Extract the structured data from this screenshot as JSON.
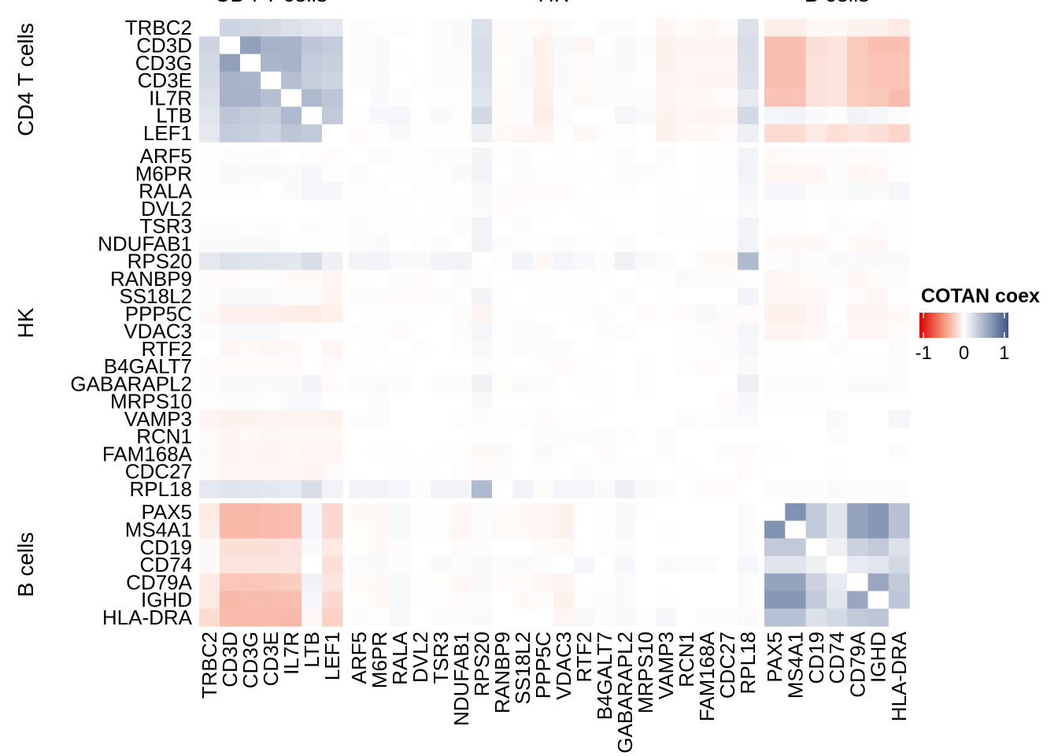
{
  "chart_data": {
    "type": "heatmap",
    "title": "",
    "legend": {
      "title": "COTAN coex",
      "ticks": [
        -1,
        0,
        1
      ],
      "range": [
        -1.1,
        1.1
      ],
      "placement": "right",
      "colors": {
        "neg": "#DD0000",
        "mid_neg": "#F58A6E",
        "zero": "#FFFFFF",
        "pos": "#3F5788"
      }
    },
    "groups": [
      {
        "name": "CD4 T cells",
        "genes": [
          "TRBC2",
          "CD3D",
          "CD3G",
          "CD3E",
          "IL7R",
          "LTB",
          "LEF1"
        ]
      },
      {
        "name": "HK",
        "genes": [
          "ARF5",
          "M6PR",
          "RALA",
          "DVL2",
          "TSR3",
          "NDUFAB1",
          "RPS20",
          "RANBP9",
          "SS18L2",
          "PPP5C",
          "VDAC3",
          "RTF2",
          "B4GALT7",
          "GABARAPL2",
          "MRPS10",
          "VAMP3",
          "RCN1",
          "FAM168A",
          "CDC27",
          "RPL18"
        ]
      },
      {
        "name": "B cells",
        "genes": [
          "PAX5",
          "MS4A1",
          "CD19",
          "CD74",
          "CD79A",
          "IGHD",
          "HLA-DRA"
        ]
      }
    ],
    "matrix": [
      [
        0,
        0.28,
        0.25,
        0.24,
        0.2,
        0.17,
        0.15,
        0.02,
        0.01,
        -0.01,
        0,
        0.02,
        0.03,
        0.2,
        -0.02,
        0.02,
        -0.03,
        0.02,
        0,
        -0.02,
        0.02,
        0,
        -0.04,
        -0.02,
        -0.04,
        -0.02,
        0.2,
        -0.08,
        -0.08,
        -0.03,
        -0.03,
        -0.06,
        -0.06,
        -0.1
      ],
      [
        0.28,
        0,
        0.62,
        0.5,
        0.5,
        0.38,
        0.34,
        0.02,
        0.03,
        0,
        0,
        0.02,
        0.03,
        0.22,
        -0.02,
        0.02,
        -0.06,
        0.04,
        -0.04,
        0,
        0.03,
        0.02,
        -0.06,
        -0.05,
        -0.05,
        -0.05,
        0.22,
        -0.3,
        -0.3,
        -0.15,
        -0.13,
        -0.25,
        -0.3,
        -0.3
      ],
      [
        0.25,
        0.62,
        0,
        0.48,
        0.5,
        0.34,
        0.32,
        0.02,
        0.03,
        0.01,
        0,
        0.02,
        0.02,
        0.22,
        -0.01,
        0.03,
        -0.06,
        0.03,
        -0.02,
        0.02,
        0.03,
        0.01,
        -0.06,
        -0.04,
        -0.04,
        -0.04,
        0.21,
        -0.3,
        -0.3,
        -0.14,
        -0.12,
        -0.25,
        -0.28,
        -0.28
      ],
      [
        0.24,
        0.5,
        0.48,
        0,
        0.42,
        0.32,
        0.28,
        0.02,
        0.03,
        0,
        0.01,
        0.02,
        0.02,
        0.2,
        -0.01,
        0.03,
        -0.06,
        0.03,
        -0.02,
        0.02,
        0.02,
        0.01,
        -0.05,
        -0.04,
        -0.05,
        -0.05,
        0.2,
        -0.3,
        -0.3,
        -0.14,
        -0.12,
        -0.25,
        -0.28,
        -0.28
      ],
      [
        0.2,
        0.5,
        0.5,
        0.42,
        0,
        0.45,
        0.38,
        0,
        0.03,
        0.02,
        0,
        0.01,
        0.01,
        0.17,
        -0.02,
        0.02,
        -0.07,
        0.02,
        -0.03,
        0.02,
        0.02,
        0.02,
        -0.05,
        -0.03,
        -0.03,
        -0.02,
        0.14,
        -0.28,
        -0.28,
        -0.14,
        -0.12,
        -0.24,
        -0.26,
        -0.32
      ],
      [
        0.17,
        0.38,
        0.34,
        0.32,
        0.45,
        0,
        0.35,
        0.01,
        0.05,
        0.06,
        0,
        0.03,
        0.01,
        0.25,
        -0.02,
        0.02,
        -0.08,
        0.02,
        0,
        0,
        0.06,
        0.03,
        -0.06,
        -0.04,
        -0.05,
        -0.04,
        0.25,
        0.06,
        0.07,
        0.03,
        -0.01,
        0.08,
        0.06,
        -0.02
      ],
      [
        0.15,
        0.34,
        0.32,
        0.28,
        0.38,
        0.35,
        0,
        -0.02,
        0.01,
        0.04,
        -0.01,
        -0.01,
        -0.01,
        0.1,
        -0.03,
        -0.04,
        -0.05,
        0.01,
        -0.03,
        -0.01,
        -0.01,
        0,
        -0.06,
        -0.03,
        -0.03,
        -0.02,
        0.1,
        -0.17,
        -0.17,
        -0.1,
        -0.15,
        -0.12,
        -0.15,
        -0.2
      ],
      [
        0.01,
        0.02,
        0.02,
        0.02,
        0,
        0.01,
        -0.02,
        0,
        0.02,
        -0.01,
        -0.01,
        0.02,
        0.02,
        0.07,
        -0.01,
        0.02,
        0,
        0.01,
        0,
        -0.01,
        0.02,
        0,
        0.02,
        0,
        -0.01,
        -0.01,
        0.07,
        -0.03,
        -0.02,
        -0.02,
        0.02,
        -0.02,
        -0.02,
        0.01
      ],
      [
        0.01,
        0.04,
        0.03,
        0.03,
        0.03,
        0.05,
        0.01,
        0.02,
        0,
        0.01,
        -0.01,
        0.01,
        0.03,
        0.07,
        0,
        0.02,
        0.01,
        0.01,
        0.01,
        0,
        0.02,
        0.02,
        0.01,
        0,
        -0.01,
        0.01,
        0.08,
        -0.04,
        -0.04,
        -0.04,
        0.02,
        -0.04,
        -0.03,
        0.01
      ],
      [
        -0.01,
        0.01,
        0.01,
        0,
        0.03,
        0.06,
        0.05,
        -0.01,
        0.01,
        0,
        0.01,
        -0.01,
        0,
        0.04,
        0.02,
        -0.02,
        -0.02,
        -0.02,
        0,
        0.01,
        0.01,
        0,
        0.01,
        0,
        0.01,
        0.01,
        0.05,
        0.05,
        0.05,
        0.02,
        0.02,
        0.04,
        0.03,
        0.05
      ],
      [
        0,
        0,
        0,
        0,
        0,
        0,
        -0.01,
        -0.01,
        -0.01,
        0.01,
        0,
        0.01,
        0.01,
        0.03,
        -0.02,
        -0.01,
        0.01,
        0,
        -0.01,
        0,
        0,
        0,
        0.01,
        0.01,
        0,
        0,
        0.03,
        0.01,
        0.01,
        0,
        -0.01,
        0,
        0,
        0.01
      ],
      [
        0.02,
        0.02,
        0.01,
        0.02,
        0,
        0.02,
        -0.01,
        0.02,
        0.01,
        -0.01,
        0.01,
        0,
        0.02,
        0.07,
        0,
        0.02,
        0,
        0,
        0,
        0.01,
        0,
        0,
        0.01,
        -0.01,
        -0.01,
        -0.01,
        0.07,
        -0.01,
        -0.01,
        0,
        0.02,
        -0.01,
        -0.02,
        0.01
      ],
      [
        0.03,
        0.03,
        0.03,
        0.03,
        0.01,
        0.01,
        -0.01,
        0.02,
        0.03,
        0,
        0.01,
        0.02,
        0,
        0.08,
        0.02,
        0.01,
        -0.01,
        0.02,
        0.01,
        0,
        0.02,
        0,
        0,
        0,
        -0.01,
        -0.01,
        0.08,
        -0.03,
        -0.03,
        -0.03,
        0.01,
        -0.03,
        -0.03,
        0.01
      ],
      [
        0.15,
        0.2,
        0.18,
        0.17,
        0.16,
        0.22,
        0.1,
        0.07,
        0.07,
        0.04,
        0.03,
        0.07,
        0.08,
        0,
        0.01,
        0.07,
        -0.03,
        0.06,
        0.04,
        0.02,
        0.09,
        0.04,
        0.02,
        0,
        -0.03,
        -0.03,
        0.45,
        0.02,
        0.03,
        0.02,
        0.04,
        0.03,
        0.03,
        0.03
      ],
      [
        -0.02,
        -0.02,
        -0.01,
        -0.01,
        -0.03,
        -0.03,
        -0.04,
        -0.01,
        0,
        0.02,
        -0.02,
        0,
        0.02,
        0.01,
        0,
        0.01,
        0.01,
        0.01,
        0.01,
        -0.01,
        0,
        0.01,
        0.01,
        0.03,
        0.02,
        0.02,
        0.01,
        -0.04,
        -0.03,
        -0.02,
        0.02,
        -0.04,
        -0.02,
        0.02
      ],
      [
        0.02,
        0.03,
        0.04,
        0.03,
        0.02,
        0.02,
        -0.05,
        0.02,
        0.02,
        -0.02,
        -0.02,
        0.02,
        0.01,
        0.07,
        0.01,
        0,
        0.01,
        0.01,
        0.01,
        0,
        0.02,
        0,
        -0.01,
        0,
        0,
        0,
        0.07,
        -0.04,
        -0.04,
        -0.03,
        0.01,
        -0.02,
        -0.04,
        0.01
      ],
      [
        -0.03,
        -0.07,
        -0.07,
        -0.07,
        -0.08,
        -0.09,
        -0.07,
        0,
        0.01,
        0.01,
        0.01,
        0,
        -0.02,
        -0.05,
        0.01,
        0.01,
        0,
        0,
        -0.01,
        0.02,
        0,
        -0.02,
        -0.01,
        -0.02,
        0.04,
        0.02,
        -0.02,
        -0.06,
        -0.06,
        -0.04,
        0,
        -0.05,
        -0.05,
        -0.03
      ],
      [
        0.02,
        0.04,
        0.04,
        0.04,
        0.02,
        0.02,
        0.01,
        0.01,
        0.01,
        -0.02,
        0,
        0,
        0.02,
        0.06,
        0.01,
        0.02,
        -0.02,
        0,
        0,
        0.02,
        0.01,
        0,
        0,
        0.01,
        0.02,
        -0.02,
        0.06,
        -0.05,
        -0.05,
        -0.03,
        0.01,
        -0.04,
        -0.04,
        -0.02
      ],
      [
        0,
        -0.04,
        -0.03,
        -0.04,
        -0.03,
        -0.01,
        -0.04,
        0,
        0.01,
        0,
        -0.01,
        0,
        0.01,
        0.04,
        0.01,
        0.02,
        0.02,
        0.02,
        0,
        -0.01,
        0,
        0,
        0,
        0.01,
        0.01,
        0.02,
        0.05,
        -0.01,
        -0.01,
        0,
        0.02,
        0,
        0,
        0.02
      ],
      [
        -0.02,
        -0.02,
        -0.02,
        -0.02,
        -0.02,
        0,
        -0.02,
        -0.01,
        0,
        0.01,
        0,
        0,
        0,
        0.02,
        -0.01,
        0,
        -0.01,
        -0.02,
        -0.01,
        0,
        0,
        0.01,
        0,
        -0.01,
        -0.02,
        -0.01,
        0.03,
        0.01,
        0.01,
        0.01,
        0,
        0.01,
        0.01,
        0.02
      ],
      [
        0.02,
        0.03,
        0.03,
        0.03,
        0.03,
        0.07,
        -0.02,
        0.02,
        0.03,
        0.02,
        0,
        0.02,
        0.02,
        0.09,
        -0.01,
        0.03,
        -0.02,
        0,
        -0.01,
        0.01,
        0,
        0.01,
        0,
        0,
        0,
        0,
        0.1,
        0.03,
        0.03,
        0.02,
        0.01,
        0.03,
        0.03,
        0.02
      ],
      [
        -0.01,
        0.02,
        0.02,
        0.01,
        0.03,
        0.03,
        0,
        0,
        0.02,
        0,
        0,
        0,
        0,
        0.04,
        0,
        0,
        -0.01,
        0,
        0,
        0.01,
        0,
        0,
        0,
        0,
        0,
        -0.02,
        0.05,
        0.01,
        0.01,
        0.01,
        0,
        0,
        0,
        0
      ],
      [
        -0.05,
        -0.06,
        -0.06,
        -0.05,
        -0.05,
        -0.05,
        -0.06,
        0.02,
        0.02,
        0,
        0,
        0,
        0.01,
        0.02,
        0.01,
        0.01,
        -0.02,
        0.01,
        0.01,
        0,
        0,
        0,
        0,
        0.02,
        0.01,
        0.02,
        0.03,
        0,
        0,
        0,
        0.03,
        0,
        0,
        0.06
      ],
      [
        -0.02,
        -0.05,
        -0.03,
        -0.04,
        -0.03,
        -0.03,
        -0.03,
        0,
        0,
        0,
        0,
        0,
        0,
        0.01,
        0.01,
        0,
        0.02,
        0.02,
        0.02,
        0.02,
        0.01,
        0,
        0.02,
        0,
        0,
        0,
        0,
        0,
        0,
        0,
        0.02,
        0,
        0,
        0
      ],
      [
        -0.03,
        -0.05,
        -0.04,
        -0.05,
        -0.03,
        -0.04,
        -0.04,
        0,
        -0.01,
        0.01,
        0,
        -0.01,
        -0.01,
        -0.03,
        0.03,
        0,
        0.03,
        -0.01,
        0,
        -0.02,
        0,
        0,
        0.02,
        0,
        0,
        0.02,
        -0.02,
        -0.01,
        0,
        0,
        0,
        0,
        0,
        0.02
      ],
      [
        -0.02,
        -0.04,
        -0.04,
        -0.04,
        -0.04,
        -0.05,
        -0.02,
        0,
        0,
        0.01,
        0.01,
        0,
        -0.01,
        -0.02,
        0.02,
        0,
        0.01,
        0,
        0.02,
        -0.01,
        -0.01,
        0.01,
        0,
        0.01,
        0,
        0,
        -0.02,
        0,
        0,
        0,
        0.01,
        0,
        0,
        0
      ],
      [
        0.15,
        0.18,
        0.17,
        0.16,
        0.13,
        0.22,
        0.08,
        0.07,
        0.08,
        0.05,
        0.02,
        0.07,
        0.08,
        0.45,
        0,
        0.08,
        -0.02,
        0.06,
        0.05,
        0.03,
        0.1,
        0.04,
        0.02,
        0,
        -0.02,
        -0.02,
        0,
        0.02,
        0.02,
        0.02,
        0.03,
        0.02,
        0.02,
        0.02
      ],
      [
        -0.1,
        -0.33,
        -0.33,
        -0.32,
        -0.3,
        0.06,
        -0.18,
        -0.03,
        -0.03,
        0.04,
        0.01,
        -0.01,
        -0.03,
        0.02,
        -0.02,
        -0.03,
        -0.04,
        -0.06,
        0,
        0.01,
        0.03,
        0.01,
        0,
        0,
        0,
        0,
        0.02,
        0,
        0.72,
        0.35,
        0.18,
        0.6,
        0.68,
        0.4
      ],
      [
        -0.08,
        -0.33,
        -0.33,
        -0.32,
        -0.3,
        0.06,
        -0.18,
        -0.01,
        -0.03,
        0.04,
        0.01,
        -0.01,
        -0.04,
        0.02,
        -0.03,
        -0.03,
        -0.04,
        -0.06,
        0,
        0.01,
        0.04,
        0,
        -0.01,
        0,
        0,
        0,
        0.02,
        0.72,
        0,
        0.35,
        0.18,
        0.6,
        0.68,
        0.4
      ],
      [
        -0.03,
        -0.15,
        -0.15,
        -0.15,
        -0.13,
        0.03,
        -0.1,
        -0.01,
        -0.03,
        0.02,
        0,
        0,
        -0.02,
        0.02,
        0,
        0,
        -0.02,
        -0.03,
        0,
        0.01,
        0.02,
        0,
        0,
        0,
        0,
        0,
        0.02,
        0.35,
        0.35,
        0,
        0.1,
        0.3,
        0.35,
        0.2
      ],
      [
        -0.03,
        -0.13,
        -0.13,
        -0.12,
        -0.12,
        0,
        -0.15,
        0.03,
        0.03,
        0.02,
        0,
        0.03,
        0.02,
        0.04,
        0.02,
        0.03,
        0.02,
        0,
        0.05,
        0,
        0.05,
        0,
        0.03,
        0.02,
        0.02,
        0,
        0.05,
        0.18,
        0.18,
        0.1,
        0,
        0.14,
        0.17,
        0.25
      ],
      [
        -0.1,
        -0.27,
        -0.27,
        -0.26,
        -0.24,
        0.08,
        -0.12,
        -0.02,
        -0.03,
        0.04,
        0.01,
        -0.01,
        -0.03,
        0.03,
        -0.02,
        -0.02,
        -0.04,
        -0.05,
        0,
        0.01,
        0.03,
        0,
        0,
        0,
        0,
        0,
        0.02,
        0.6,
        0.6,
        0.3,
        0.14,
        0,
        0.58,
        0.35
      ],
      [
        -0.1,
        -0.33,
        -0.31,
        -0.31,
        -0.3,
        0.06,
        -0.18,
        -0.01,
        -0.03,
        0.04,
        0.01,
        -0.01,
        -0.02,
        0.02,
        0,
        -0.03,
        -0.02,
        -0.06,
        0.01,
        0.02,
        0.03,
        0,
        -0.01,
        0,
        0,
        0,
        0.02,
        0.68,
        0.68,
        0.35,
        0.17,
        0.58,
        0,
        0.38
      ],
      [
        -0.17,
        -0.32,
        -0.32,
        -0.31,
        -0.33,
        -0.03,
        -0.22,
        0.02,
        0.01,
        0.04,
        0,
        0.02,
        0.02,
        0.03,
        0,
        0,
        0,
        -0.04,
        0.04,
        0.02,
        0.03,
        0.01,
        0.06,
        0,
        0.02,
        0.02,
        0.03,
        0.4,
        0.4,
        0.2,
        0.25,
        0.35,
        0.38,
        0
      ]
    ]
  }
}
